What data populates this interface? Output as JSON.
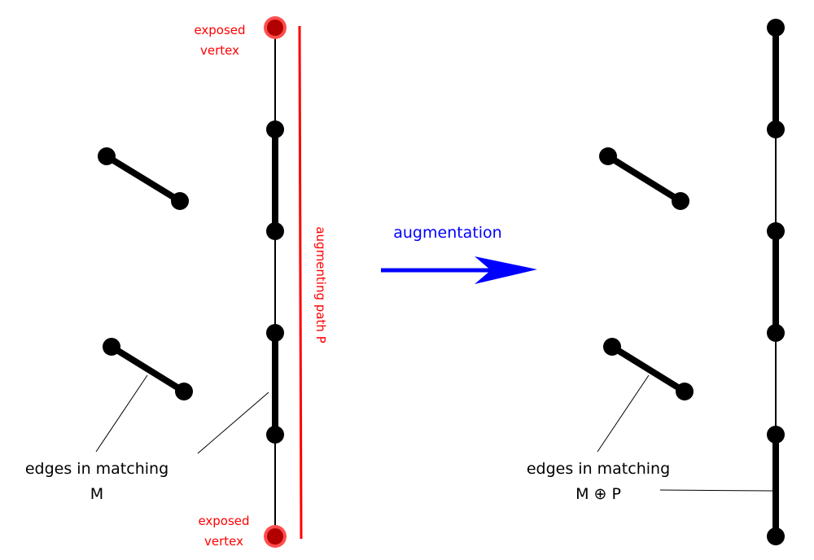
{
  "colors": {
    "exposed": "#ff0000",
    "exposed_fill": "#b20000",
    "exposed_halo": "#ff4d4d",
    "arrow": "#0000ff",
    "edge": "#000000"
  },
  "left": {
    "exposed_top": [
      "exposed",
      "vertex"
    ],
    "exposed_bottom": [
      "exposed",
      "vertex"
    ],
    "path_label": "augmenting path P",
    "caption": [
      "edges in matching",
      "M"
    ]
  },
  "arrow_label": "augmentation",
  "right": {
    "caption": [
      "edges in matching",
      "M ⊕ P"
    ]
  }
}
